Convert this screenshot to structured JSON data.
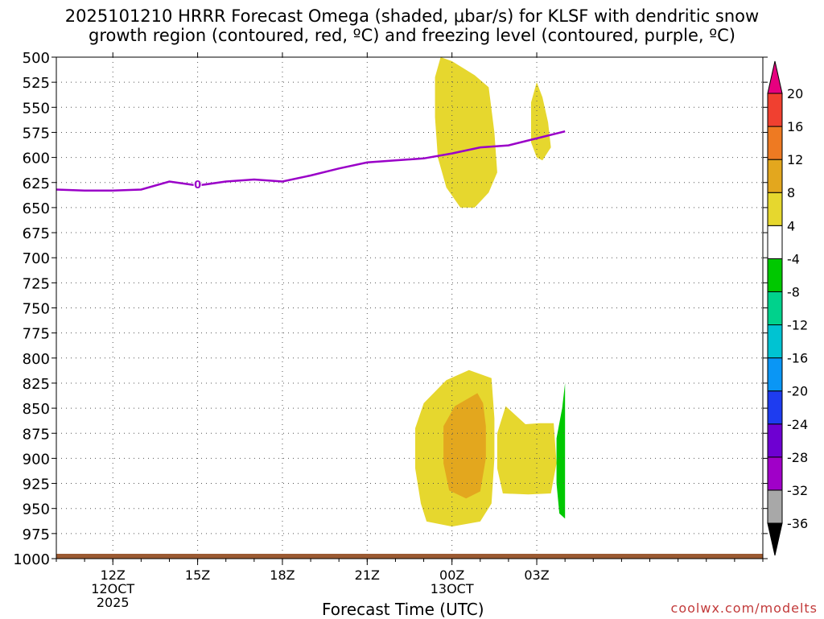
{
  "title_line1": "2025101210 HRRR Forecast Omega (shaded, μbar/s) for KLSF with dendritic snow",
  "title_line2": "growth region (contoured, red, ºC) and freezing level (contoured, purple, ºC)",
  "credit": "coolwx.com/modelts",
  "chart_data": {
    "type": "time-height contour",
    "xlabel": "Forecast Time (UTC)",
    "ylabel": "",
    "x_hours_range": [
      10,
      35
    ],
    "y_range": [
      1000,
      500
    ],
    "x_ticks": [
      {
        "hour": 12,
        "lines": [
          "12Z",
          "12OCT",
          "2025"
        ]
      },
      {
        "hour": 15,
        "lines": [
          "15Z"
        ]
      },
      {
        "hour": 18,
        "lines": [
          "18Z"
        ]
      },
      {
        "hour": 21,
        "lines": [
          "21Z"
        ]
      },
      {
        "hour": 24,
        "lines": [
          "00Z",
          "13OCT"
        ]
      },
      {
        "hour": 27,
        "lines": [
          "03Z"
        ]
      }
    ],
    "y_ticks": [
      500,
      525,
      550,
      575,
      600,
      625,
      650,
      675,
      700,
      725,
      750,
      775,
      800,
      825,
      850,
      875,
      900,
      925,
      950,
      975,
      1000
    ],
    "grid": true,
    "freezing_level": {
      "color": "#9a00c8",
      "label": "0",
      "label_at": {
        "hour": 15,
        "p": 627
      },
      "points": [
        [
          10,
          632
        ],
        [
          11,
          633
        ],
        [
          12,
          633
        ],
        [
          13,
          632
        ],
        [
          14,
          624
        ],
        [
          15,
          628
        ],
        [
          16,
          624
        ],
        [
          17,
          622
        ],
        [
          18,
          624
        ],
        [
          19,
          618
        ],
        [
          20,
          611
        ],
        [
          21,
          605
        ],
        [
          22,
          603
        ],
        [
          23,
          601
        ],
        [
          24,
          596
        ],
        [
          25,
          590
        ],
        [
          26,
          588
        ],
        [
          27,
          581
        ],
        [
          28,
          574
        ]
      ]
    },
    "omega_regions": [
      {
        "level": "4 to 8",
        "color": "#e6d72e",
        "polygon": [
          [
            23.6,
            500
          ],
          [
            23.4,
            520
          ],
          [
            23.4,
            560
          ],
          [
            23.5,
            600
          ],
          [
            23.8,
            630
          ],
          [
            24.3,
            650
          ],
          [
            24.8,
            650
          ],
          [
            25.3,
            635
          ],
          [
            25.6,
            615
          ],
          [
            25.5,
            575
          ],
          [
            25.3,
            530
          ],
          [
            24.8,
            518
          ],
          [
            24.0,
            504
          ]
        ]
      },
      {
        "level": "4 to 8",
        "color": "#e6d72e",
        "polygon": [
          [
            27.0,
            525
          ],
          [
            26.8,
            545
          ],
          [
            26.8,
            585
          ],
          [
            27.0,
            600
          ],
          [
            27.2,
            603
          ],
          [
            27.5,
            590
          ],
          [
            27.4,
            565
          ],
          [
            27.2,
            540
          ]
        ]
      },
      {
        "level": "4 to 8",
        "color": "#e6d72e",
        "polygon": [
          [
            24.6,
            812
          ],
          [
            23.8,
            822
          ],
          [
            23.0,
            845
          ],
          [
            22.7,
            870
          ],
          [
            22.7,
            910
          ],
          [
            22.9,
            945
          ],
          [
            23.1,
            963
          ],
          [
            24.0,
            968
          ],
          [
            25.0,
            963
          ],
          [
            25.4,
            945
          ],
          [
            25.5,
            900
          ],
          [
            25.5,
            860
          ],
          [
            25.4,
            820
          ]
        ]
      },
      {
        "level": "8 to 12",
        "color": "#e3a71e",
        "polygon": [
          [
            24.9,
            835
          ],
          [
            24.1,
            848
          ],
          [
            23.7,
            868
          ],
          [
            23.7,
            905
          ],
          [
            23.9,
            932
          ],
          [
            24.5,
            940
          ],
          [
            25.0,
            933
          ],
          [
            25.2,
            900
          ],
          [
            25.2,
            868
          ],
          [
            25.1,
            845
          ]
        ]
      },
      {
        "level": "4 to 8",
        "color": "#e6d72e",
        "polygon": [
          [
            25.9,
            848
          ],
          [
            25.6,
            875
          ],
          [
            25.6,
            910
          ],
          [
            25.8,
            935
          ],
          [
            26.7,
            936
          ],
          [
            27.5,
            935
          ],
          [
            27.7,
            905
          ],
          [
            27.6,
            865
          ],
          [
            27.1,
            865
          ],
          [
            26.6,
            866
          ]
        ]
      },
      {
        "level": "-8 to -4",
        "color": "#00c800",
        "polygon": [
          [
            28.0,
            825
          ],
          [
            27.9,
            850
          ],
          [
            27.7,
            880
          ],
          [
            27.7,
            925
          ],
          [
            27.8,
            955
          ],
          [
            28.0,
            960
          ]
        ]
      }
    ],
    "colorbar": [
      {
        "color": "#000000",
        "label": "-36"
      },
      {
        "color": "#a8a8a8",
        "label": "-32"
      },
      {
        "color": "#a000c8",
        "label": "-28"
      },
      {
        "color": "#6e00d2",
        "label": "-24"
      },
      {
        "color": "#1e3cf0",
        "label": "-20"
      },
      {
        "color": "#0a96f5",
        "label": "-16"
      },
      {
        "color": "#00c3d2",
        "label": "-12"
      },
      {
        "color": "#00d28c",
        "label": "-8"
      },
      {
        "color": "#00c800",
        "label": "-4"
      },
      {
        "color": "#ffffff",
        "label": "4"
      },
      {
        "color": "#e6d72e",
        "label": "8"
      },
      {
        "color": "#e3a71e",
        "label": "12"
      },
      {
        "color": "#ee7a22",
        "label": "16"
      },
      {
        "color": "#f04030",
        "label": "20"
      },
      {
        "color": "#e6007f",
        "label": ""
      }
    ]
  }
}
